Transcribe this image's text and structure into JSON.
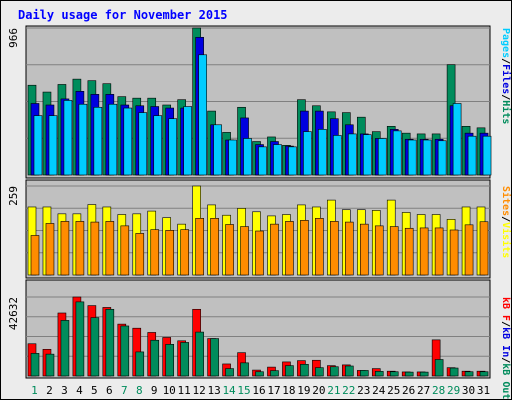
{
  "colors": {
    "background": "#c0c0c0",
    "page": "#ececec",
    "pages": "#00ccff",
    "files": "#0000e0",
    "hits": "#008c5c",
    "visits": "#ffff00",
    "sites": "#ff8c00",
    "kb_f": "#ff0000",
    "kb_in": "#0000e0",
    "kb_out": "#008c5c",
    "weekend": "#008c5c",
    "weekday": "#000000"
  },
  "chart_data": [
    {
      "type": "bar",
      "title": "Daily usage for November 2015",
      "categories": [
        "1",
        "2",
        "3",
        "4",
        "5",
        "6",
        "7",
        "8",
        "9",
        "10",
        "11",
        "12",
        "13",
        "14",
        "15",
        "16",
        "17",
        "18",
        "19",
        "20",
        "21",
        "22",
        "23",
        "24",
        "25",
        "26",
        "27",
        "28",
        "29",
        "30",
        "31"
      ],
      "weekend_days": [
        "1",
        "7",
        "8",
        "14",
        "15",
        "21",
        "22",
        "28",
        "29"
      ],
      "y_tick": "966",
      "ylim": [
        0,
        966
      ],
      "legend": [
        "Pages",
        "/",
        "Files",
        "/",
        "Hits"
      ],
      "series": [
        {
          "name": "Hits",
          "values": [
            590,
            545,
            595,
            630,
            620,
            600,
            515,
            505,
            505,
            460,
            495,
            966,
            420,
            280,
            445,
            220,
            250,
            195,
            495,
            455,
            415,
            410,
            380,
            285,
            320,
            275,
            270,
            270,
            725,
            320,
            310
          ]
        },
        {
          "name": "Files",
          "values": [
            470,
            460,
            500,
            550,
            530,
            530,
            460,
            455,
            450,
            440,
            440,
            905,
            330,
            230,
            375,
            200,
            220,
            190,
            420,
            420,
            370,
            330,
            270,
            240,
            300,
            235,
            235,
            235,
            455,
            275,
            275
          ]
        },
        {
          "name": "Pages",
          "values": [
            390,
            390,
            490,
            465,
            445,
            465,
            440,
            410,
            390,
            370,
            450,
            790,
            330,
            230,
            240,
            185,
            200,
            185,
            285,
            300,
            260,
            270,
            265,
            240,
            290,
            230,
            230,
            225,
            470,
            255,
            255
          ]
        }
      ]
    },
    {
      "type": "bar",
      "y_tick": "259",
      "ylim": [
        0,
        259
      ],
      "legend": [
        "Sites",
        "/",
        "Visits"
      ],
      "series": [
        {
          "name": "Visits",
          "values": [
            198,
            198,
            178,
            178,
            205,
            198,
            176,
            178,
            186,
            167,
            148,
            259,
            204,
            174,
            194,
            184,
            172,
            176,
            204,
            198,
            218,
            190,
            190,
            188,
            218,
            182,
            176,
            176,
            162,
            198,
            198
          ]
        },
        {
          "name": "Sites",
          "values": [
            115,
            150,
            156,
            156,
            154,
            156,
            143,
            121,
            132,
            130,
            132,
            165,
            165,
            147,
            141,
            128,
            148,
            156,
            159,
            165,
            156,
            154,
            148,
            143,
            141,
            136,
            137,
            137,
            131,
            146,
            155
          ]
        }
      ]
    },
    {
      "type": "bar",
      "y_tick": "42632",
      "ylim": [
        0,
        42632
      ],
      "legend": [
        "kB F",
        "/",
        "kB In",
        "/",
        "kB Out"
      ],
      "series": [
        {
          "name": "kB F",
          "values": [
            17400,
            14400,
            34000,
            42632,
            38000,
            37000,
            28000,
            25800,
            23500,
            20800,
            19000,
            36000,
            20200,
            6500,
            12600,
            3200,
            4800,
            7600,
            8300,
            8500,
            5600,
            6000,
            3000,
            4000,
            2600,
            2200,
            2200,
            19500,
            4500,
            2600,
            2600
          ]
        },
        {
          "name": "kB Out",
          "values": [
            12200,
            11800,
            30000,
            40000,
            31500,
            36000,
            27000,
            13000,
            19300,
            17100,
            18100,
            23700,
            20200,
            4000,
            7100,
            2300,
            2900,
            5600,
            6300,
            4500,
            5000,
            5400,
            3000,
            2500,
            2300,
            2100,
            2100,
            8900,
            4300,
            2300,
            2300
          ]
        },
        {
          "name": "kB In",
          "values": [
            0,
            0,
            0,
            0,
            0,
            0,
            0,
            0,
            0,
            0,
            0,
            0,
            0,
            0,
            0,
            0,
            0,
            0,
            0,
            0,
            0,
            0,
            0,
            0,
            0,
            0,
            0,
            0,
            0,
            0,
            0
          ]
        }
      ]
    }
  ]
}
